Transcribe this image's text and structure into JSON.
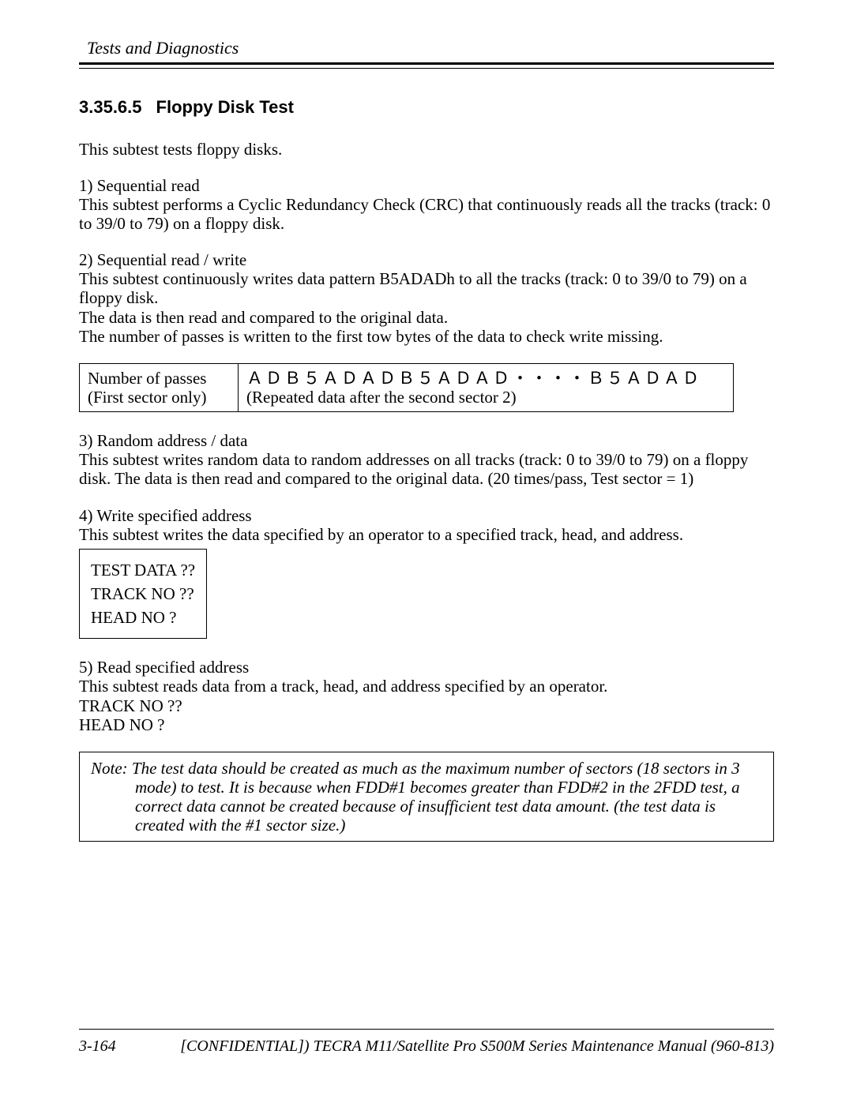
{
  "header": {
    "running_title": "Tests and Diagnostics"
  },
  "section": {
    "number": "3.35.6.5",
    "title": "Floppy Disk Test",
    "intro": "This subtest tests floppy disks."
  },
  "item1": {
    "head": "1) Sequential read",
    "body": "This subtest performs a Cyclic Redundancy Check (CRC) that continuously reads all the tracks (track: 0 to 39/0 to 79) on a floppy disk."
  },
  "item2": {
    "head": "2) Sequential read / write",
    "body1": "This subtest continuously writes data pattern B5ADADh to all the tracks (track: 0 to 39/0 to 79) on a floppy disk.",
    "body2": "The data is then read and compared to the original data.",
    "body3": "The number of passes is written to the first tow bytes of the data to check write missing."
  },
  "table": {
    "left1": "Number of passes",
    "left2": "(First sector only)",
    "right1": "ＡＤＢ５ＡＤＡＤＢ５ＡＤＡＤ・・・・Ｂ５ＡＤＡＤ",
    "right2": "(Repeated data after the second sector 2)"
  },
  "item3": {
    "head": "3) Random address / data",
    "body": "This subtest writes random data to random addresses on all tracks (track: 0 to 39/0 to 79) on a floppy disk. The data is then read and compared to the original data. (20 times/pass, Test sector = 1)"
  },
  "item4": {
    "head": "4) Write specified address",
    "body": "This subtest writes the data specified by an operator to a specified track, head, and address."
  },
  "box4": {
    "r1": "TEST DATA ??",
    "r2": "TRACK NO ??",
    "r3": "HEAD NO ?"
  },
  "item5": {
    "head": "5) Read specified address",
    "body": "This subtest reads data from a track, head, and address specified by an operator.",
    "l1": "TRACK NO ??",
    "l2": "HEAD NO ?"
  },
  "note": {
    "label": "Note:",
    "body": "The test data should be created as much as the maximum number of sectors (18 sectors in 3 mode) to test. It is because when FDD#1 becomes greater than FDD#2 in the 2FDD test, a correct data cannot be created because of insufficient test data amount. (the test data is created with the #1 sector size.)"
  },
  "footer": {
    "page": "3-164",
    "title": "[CONFIDENTIAL]) TECRA M11/Satellite Pro S500M Series Maintenance Manual (960-813)"
  }
}
